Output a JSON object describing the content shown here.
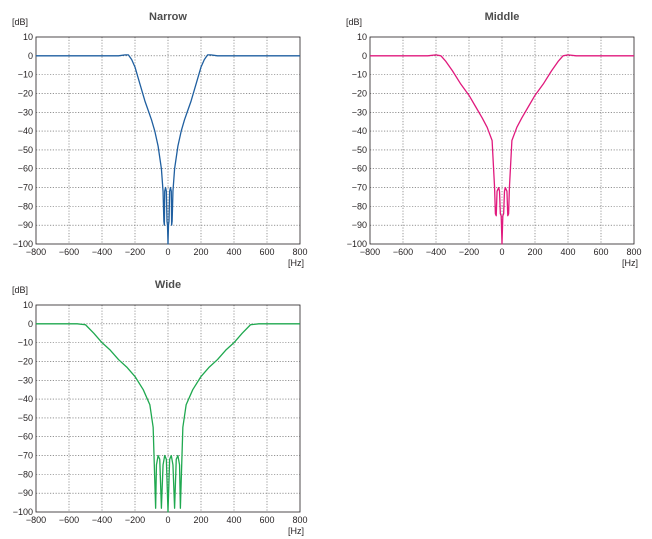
{
  "chart_data": [
    {
      "type": "line",
      "title": "Narrow",
      "xlabel": "[Hz]",
      "ylabel": "[dB]",
      "xlim": [
        -800,
        800
      ],
      "ylim": [
        -100,
        10
      ],
      "xticks": [
        "−800",
        "−600",
        "−400",
        "−200",
        "0",
        "200",
        "400",
        "600",
        "800"
      ],
      "yticks": [
        "10",
        "0",
        "−10",
        "−20",
        "−30",
        "−40",
        "−50",
        "−60",
        "−70",
        "−80",
        "−90",
        "−100"
      ],
      "grid": true,
      "color": "#1f5fa0",
      "series": [
        {
          "x": [
            -800,
            -500,
            -300,
            -260,
            -240,
            -220,
            -200,
            -180,
            -160,
            -140,
            -120,
            -100,
            -80,
            -60,
            -40,
            -30,
            -25,
            -22,
            -20,
            -15,
            -10,
            -6,
            -3,
            0,
            3,
            6,
            10,
            15,
            20,
            22,
            25,
            30,
            40,
            60,
            80,
            100,
            120,
            140,
            160,
            180,
            200,
            220,
            240,
            260,
            300,
            500,
            800
          ],
          "y": [
            0,
            0,
            0,
            0.5,
            0.5,
            -2,
            -6,
            -12,
            -18,
            -24,
            -29,
            -34,
            -40,
            -48,
            -60,
            -72,
            -88,
            -90,
            -72,
            -70,
            -72,
            -88,
            -90,
            -100,
            -90,
            -88,
            -72,
            -70,
            -72,
            -90,
            -88,
            -72,
            -60,
            -48,
            -40,
            -34,
            -29,
            -24,
            -18,
            -12,
            -6,
            -2,
            0.5,
            0.5,
            0,
            0,
            0
          ]
        }
      ]
    },
    {
      "type": "line",
      "title": "Middle",
      "xlabel": "[Hz]",
      "ylabel": "[dB]",
      "xlim": [
        -800,
        800
      ],
      "ylim": [
        -100,
        10
      ],
      "xticks": [
        "−800",
        "−600",
        "−400",
        "−200",
        "0",
        "200",
        "400",
        "600",
        "800"
      ],
      "yticks": [
        "10",
        "0",
        "−10",
        "−20",
        "−30",
        "−40",
        "−50",
        "−60",
        "−70",
        "−80",
        "−90",
        "−100"
      ],
      "grid": true,
      "color": "#e0197d",
      "series": [
        {
          "x": [
            -800,
            -600,
            -450,
            -400,
            -370,
            -340,
            -300,
            -250,
            -200,
            -160,
            -120,
            -90,
            -60,
            -45,
            -40,
            -35,
            -30,
            -20,
            -15,
            -10,
            -5,
            0,
            5,
            10,
            15,
            20,
            30,
            35,
            40,
            45,
            60,
            90,
            120,
            160,
            200,
            250,
            300,
            340,
            370,
            400,
            450,
            600,
            800
          ],
          "y": [
            0,
            0,
            0,
            0.5,
            0,
            -3,
            -8,
            -15,
            -21,
            -27,
            -33,
            -38,
            -45,
            -70,
            -84,
            -85,
            -72,
            -70,
            -72,
            -84,
            -85,
            -100,
            -85,
            -84,
            -72,
            -70,
            -72,
            -85,
            -84,
            -70,
            -45,
            -38,
            -33,
            -27,
            -21,
            -15,
            -8,
            -3,
            0,
            0.5,
            0,
            0,
            0
          ]
        }
      ]
    },
    {
      "type": "line",
      "title": "Wide",
      "xlabel": "[Hz]",
      "ylabel": "[dB]",
      "xlim": [
        -800,
        800
      ],
      "ylim": [
        -100,
        10
      ],
      "xticks": [
        "−800",
        "−600",
        "−400",
        "−200",
        "0",
        "200",
        "400",
        "600",
        "800"
      ],
      "yticks": [
        "10",
        "0",
        "−10",
        "−20",
        "−30",
        "−40",
        "−50",
        "−60",
        "−70",
        "−80",
        "−90",
        "−100"
      ],
      "grid": true,
      "color": "#1fa84f",
      "series": [
        {
          "x": [
            -800,
            -600,
            -550,
            -500,
            -450,
            -400,
            -350,
            -300,
            -250,
            -200,
            -150,
            -110,
            -90,
            -75,
            -70,
            -60,
            -50,
            -40,
            -30,
            -20,
            -10,
            0,
            10,
            20,
            30,
            40,
            50,
            60,
            70,
            75,
            90,
            110,
            150,
            200,
            250,
            300,
            350,
            400,
            450,
            500,
            550,
            600,
            800
          ],
          "y": [
            0,
            0,
            0,
            -0.5,
            -5,
            -10,
            -14,
            -19,
            -23,
            -28,
            -35,
            -43,
            -55,
            -98,
            -75,
            -70,
            -72,
            -98,
            -75,
            -70,
            -72,
            -100,
            -72,
            -70,
            -75,
            -98,
            -72,
            -70,
            -75,
            -98,
            -55,
            -43,
            -35,
            -28,
            -23,
            -19,
            -14,
            -10,
            -5,
            -0.5,
            0,
            0,
            0
          ]
        }
      ]
    }
  ]
}
